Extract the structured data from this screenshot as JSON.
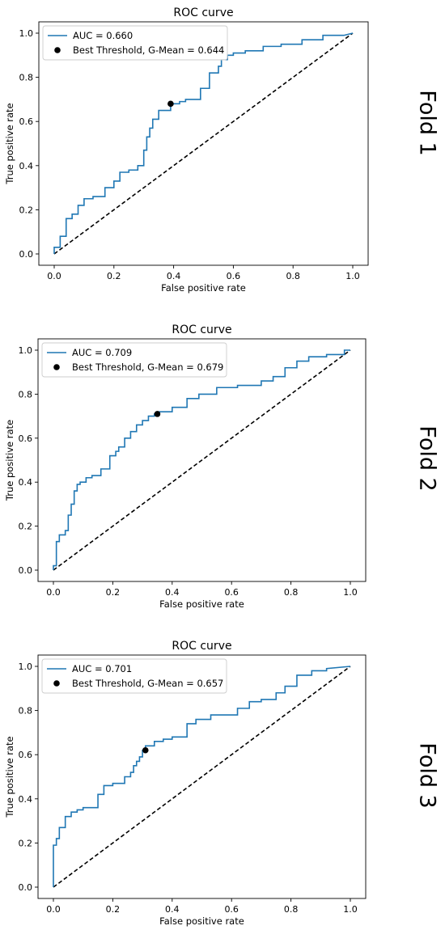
{
  "chart_data": [
    {
      "type": "line",
      "fold_label": "Fold 1",
      "title": "ROC curve",
      "xlabel": "False positive rate",
      "ylabel": "True positive rate",
      "xlim": [
        0.0,
        1.0
      ],
      "ylim": [
        0.0,
        1.0
      ],
      "xticks": [
        "0.0",
        "0.2",
        "0.4",
        "0.6",
        "0.8",
        "1.0"
      ],
      "yticks": [
        "0.0",
        "0.2",
        "0.4",
        "0.6",
        "0.8",
        "1.0"
      ],
      "grid": false,
      "legend_position": "upper-left",
      "colors": {
        "roc": "#1f77b4",
        "chance": "#000000",
        "best": "#000000"
      },
      "series": [
        {
          "name": "AUC = 0.660",
          "x": [
            0,
            0,
            0.02,
            0.02,
            0.04,
            0.04,
            0.06,
            0.06,
            0.08,
            0.08,
            0.1,
            0.1,
            0.13,
            0.13,
            0.17,
            0.17,
            0.2,
            0.2,
            0.22,
            0.22,
            0.25,
            0.25,
            0.28,
            0.28,
            0.3,
            0.3,
            0.31,
            0.31,
            0.32,
            0.32,
            0.33,
            0.33,
            0.35,
            0.35,
            0.39,
            0.39,
            0.42,
            0.42,
            0.44,
            0.44,
            0.49,
            0.49,
            0.52,
            0.52,
            0.55,
            0.55,
            0.56,
            0.56,
            0.58,
            0.58,
            0.6,
            0.6,
            0.64,
            0.64,
            0.7,
            0.7,
            0.76,
            0.76,
            0.83,
            0.83,
            0.9,
            0.9,
            0.97,
            1.0
          ],
          "y": [
            0,
            0.03,
            0.03,
            0.08,
            0.08,
            0.16,
            0.16,
            0.18,
            0.18,
            0.22,
            0.22,
            0.25,
            0.25,
            0.26,
            0.26,
            0.3,
            0.3,
            0.33,
            0.33,
            0.37,
            0.37,
            0.38,
            0.38,
            0.4,
            0.4,
            0.47,
            0.47,
            0.53,
            0.53,
            0.57,
            0.57,
            0.61,
            0.61,
            0.65,
            0.65,
            0.68,
            0.68,
            0.69,
            0.69,
            0.7,
            0.7,
            0.75,
            0.75,
            0.82,
            0.82,
            0.85,
            0.85,
            0.88,
            0.88,
            0.9,
            0.9,
            0.91,
            0.91,
            0.92,
            0.92,
            0.94,
            0.94,
            0.95,
            0.95,
            0.97,
            0.97,
            0.99,
            0.99,
            1.0
          ]
        },
        {
          "name": "Best Threshold, G-Mean = 0.644",
          "x": [
            0.39
          ],
          "y": [
            0.68
          ]
        },
        {
          "x": [
            0,
            1
          ],
          "y": [
            0,
            1
          ]
        }
      ]
    },
    {
      "type": "line",
      "fold_label": "Fold 2",
      "title": "ROC curve",
      "xlabel": "False positive rate",
      "ylabel": "True positive rate",
      "xlim": [
        0.0,
        1.0
      ],
      "ylim": [
        0.0,
        1.0
      ],
      "xticks": [
        "0.0",
        "0.2",
        "0.4",
        "0.6",
        "0.8",
        "1.0"
      ],
      "yticks": [
        "0.0",
        "0.2",
        "0.4",
        "0.6",
        "0.8",
        "1.0"
      ],
      "grid": false,
      "legend_position": "upper-left",
      "colors": {
        "roc": "#1f77b4",
        "chance": "#000000",
        "best": "#000000"
      },
      "series": [
        {
          "name": "AUC = 0.709",
          "x": [
            0,
            0,
            0.01,
            0.01,
            0.02,
            0.02,
            0.04,
            0.04,
            0.05,
            0.05,
            0.06,
            0.06,
            0.07,
            0.07,
            0.08,
            0.08,
            0.09,
            0.09,
            0.11,
            0.11,
            0.13,
            0.13,
            0.16,
            0.16,
            0.19,
            0.19,
            0.21,
            0.21,
            0.22,
            0.22,
            0.24,
            0.24,
            0.26,
            0.26,
            0.28,
            0.28,
            0.3,
            0.3,
            0.32,
            0.32,
            0.34,
            0.34,
            0.35,
            0.35,
            0.4,
            0.4,
            0.45,
            0.45,
            0.49,
            0.49,
            0.55,
            0.55,
            0.62,
            0.62,
            0.7,
            0.7,
            0.74,
            0.74,
            0.78,
            0.78,
            0.82,
            0.82,
            0.86,
            0.86,
            0.92,
            0.92,
            0.98,
            0.98,
            1.0
          ],
          "y": [
            0,
            0.02,
            0.02,
            0.13,
            0.13,
            0.16,
            0.16,
            0.18,
            0.18,
            0.25,
            0.25,
            0.3,
            0.3,
            0.36,
            0.36,
            0.39,
            0.39,
            0.4,
            0.4,
            0.42,
            0.42,
            0.43,
            0.43,
            0.46,
            0.46,
            0.52,
            0.52,
            0.54,
            0.54,
            0.56,
            0.56,
            0.6,
            0.6,
            0.63,
            0.63,
            0.66,
            0.66,
            0.68,
            0.68,
            0.7,
            0.7,
            0.71,
            0.71,
            0.72,
            0.72,
            0.74,
            0.74,
            0.78,
            0.78,
            0.8,
            0.8,
            0.83,
            0.83,
            0.84,
            0.84,
            0.86,
            0.86,
            0.88,
            0.88,
            0.92,
            0.92,
            0.95,
            0.95,
            0.97,
            0.97,
            0.98,
            0.98,
            1.0,
            1.0
          ]
        },
        {
          "name": "Best Threshold, G-Mean = 0.679",
          "x": [
            0.35
          ],
          "y": [
            0.71
          ]
        },
        {
          "x": [
            0,
            1
          ],
          "y": [
            0,
            1
          ]
        }
      ]
    },
    {
      "type": "line",
      "fold_label": "Fold 3",
      "title": "ROC curve",
      "xlabel": "False positive rate",
      "ylabel": "True positive rate",
      "xlim": [
        0.0,
        1.0
      ],
      "ylim": [
        0.0,
        1.0
      ],
      "xticks": [
        "0.0",
        "0.2",
        "0.4",
        "0.6",
        "0.8",
        "1.0"
      ],
      "yticks": [
        "0.0",
        "0.2",
        "0.4",
        "0.6",
        "0.8",
        "1.0"
      ],
      "grid": false,
      "legend_position": "upper-left",
      "colors": {
        "roc": "#1f77b4",
        "chance": "#000000",
        "best": "#000000"
      },
      "series": [
        {
          "name": "AUC = 0.701",
          "x": [
            0,
            0,
            0.01,
            0.01,
            0.02,
            0.02,
            0.04,
            0.04,
            0.06,
            0.06,
            0.08,
            0.08,
            0.1,
            0.1,
            0.15,
            0.15,
            0.17,
            0.17,
            0.2,
            0.2,
            0.24,
            0.24,
            0.26,
            0.26,
            0.27,
            0.27,
            0.28,
            0.28,
            0.29,
            0.29,
            0.3,
            0.3,
            0.31,
            0.31,
            0.34,
            0.34,
            0.37,
            0.37,
            0.4,
            0.4,
            0.45,
            0.45,
            0.48,
            0.48,
            0.53,
            0.53,
            0.62,
            0.62,
            0.66,
            0.66,
            0.7,
            0.7,
            0.75,
            0.75,
            0.78,
            0.78,
            0.82,
            0.82,
            0.87,
            0.87,
            0.92,
            0.92,
            1.0
          ],
          "y": [
            0,
            0.19,
            0.19,
            0.22,
            0.22,
            0.27,
            0.27,
            0.32,
            0.32,
            0.34,
            0.34,
            0.35,
            0.35,
            0.36,
            0.36,
            0.42,
            0.42,
            0.46,
            0.46,
            0.47,
            0.47,
            0.5,
            0.5,
            0.52,
            0.52,
            0.55,
            0.55,
            0.57,
            0.57,
            0.59,
            0.59,
            0.62,
            0.62,
            0.64,
            0.64,
            0.66,
            0.66,
            0.67,
            0.67,
            0.68,
            0.68,
            0.74,
            0.74,
            0.76,
            0.76,
            0.78,
            0.78,
            0.81,
            0.81,
            0.84,
            0.84,
            0.85,
            0.85,
            0.88,
            0.88,
            0.91,
            0.91,
            0.96,
            0.96,
            0.98,
            0.98,
            0.99,
            1.0
          ]
        },
        {
          "name": "Best Threshold, G-Mean = 0.657",
          "x": [
            0.31
          ],
          "y": [
            0.62
          ]
        },
        {
          "x": [
            0,
            1
          ],
          "y": [
            0,
            1
          ]
        }
      ]
    }
  ]
}
